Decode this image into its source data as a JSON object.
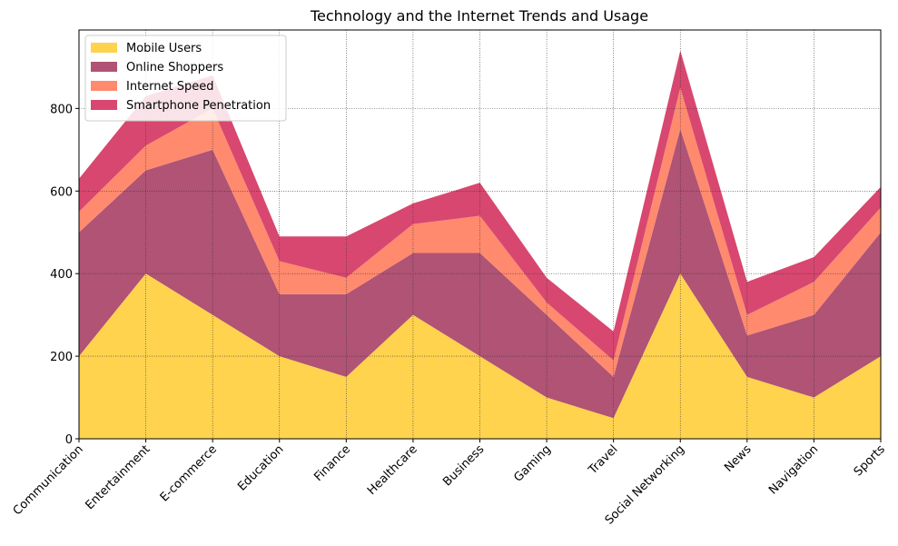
{
  "chart_data": {
    "type": "area",
    "stacked": true,
    "title": "Technology and the Internet Trends and Usage",
    "xlabel": "",
    "ylabel": "",
    "categories": [
      "Communication",
      "Entertainment",
      "E-commerce",
      "Education",
      "Finance",
      "Healthcare",
      "Business",
      "Gaming",
      "Travel",
      "Social Networking",
      "News",
      "Navigation",
      "Sports"
    ],
    "ylim": [
      0,
      990
    ],
    "yticks": [
      0,
      200,
      400,
      600,
      800
    ],
    "grid": true,
    "legend_position": "top-left",
    "series": [
      {
        "name": "Mobile Users",
        "color": "#FFD34E",
        "values": [
          200,
          400,
          300,
          200,
          150,
          300,
          200,
          100,
          50,
          400,
          150,
          100,
          200
        ]
      },
      {
        "name": "Online Shoppers",
        "color": "#B05375",
        "values": [
          300,
          250,
          400,
          150,
          200,
          150,
          250,
          200,
          100,
          350,
          100,
          200,
          300
        ]
      },
      {
        "name": "Internet Speed",
        "color": "#FF8A6E",
        "values": [
          50,
          60,
          100,
          80,
          40,
          70,
          90,
          30,
          40,
          100,
          50,
          80,
          60
        ]
      },
      {
        "name": "Smartphone Penetration",
        "color": "#D8476F",
        "values": [
          80,
          120,
          80,
          60,
          100,
          50,
          80,
          60,
          70,
          90,
          80,
          60,
          50
        ]
      }
    ]
  }
}
